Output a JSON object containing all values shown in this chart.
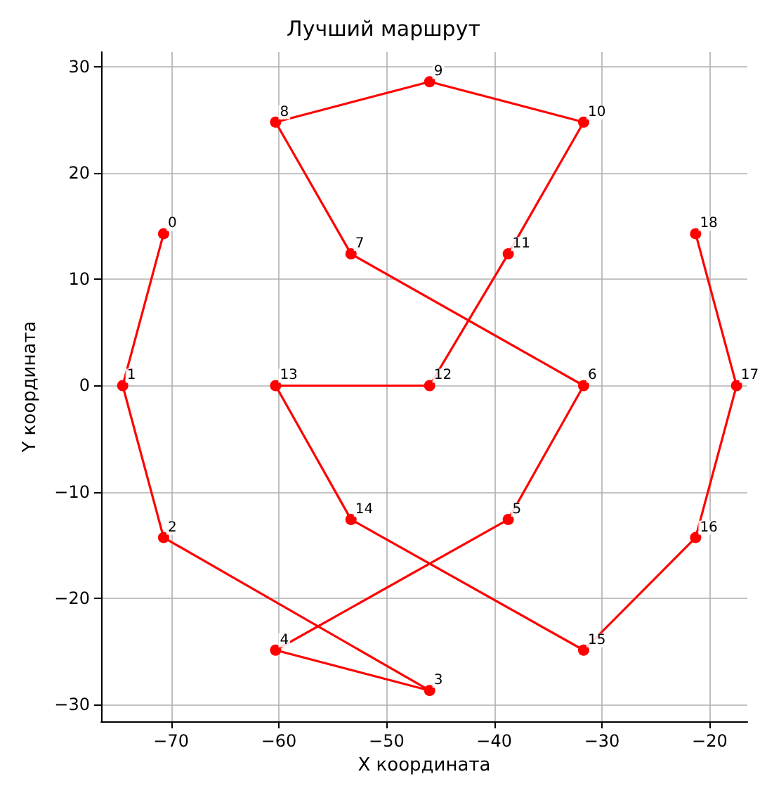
{
  "chart_data": {
    "type": "line",
    "title": "Лучший маршрут",
    "xlabel": "X координата",
    "ylabel": "Y координата",
    "x": [
      -70.7,
      -74.5,
      -70.7,
      -46,
      -60.3,
      -38.7,
      -31.7,
      -53.3,
      -60.3,
      -46,
      -31.7,
      -38.7,
      -46,
      -60.3,
      -53.3,
      -31.7,
      -21.3,
      -17.5,
      -21.3
    ],
    "series": [
      {
        "color": "#ff0000",
        "values": [
          14.3,
          0,
          -14.3,
          -28.7,
          -24.9,
          -12.6,
          0,
          12.4,
          24.8,
          28.6,
          24.8,
          12.4,
          0,
          0,
          -12.6,
          -24.9,
          -14.3,
          0,
          14.3
        ]
      }
    ],
    "xlim": [
      -76.5,
      -16.5
    ],
    "xticks": [
      -70,
      -60,
      -50,
      -40,
      -30,
      -20
    ],
    "ylim": [
      -31.6,
      31.4
    ],
    "yticks": [
      -30,
      -20,
      -10,
      0,
      10,
      20,
      30
    ],
    "grid": true,
    "marker": "circle",
    "line_style": "solid",
    "annotations": [
      {
        "text": "0",
        "x": -70.7,
        "y": 14.3
      },
      {
        "text": "1",
        "x": -74.5,
        "y": 0
      },
      {
        "text": "2",
        "x": -70.7,
        "y": -14.3
      },
      {
        "text": "3",
        "x": -46,
        "y": -28.7
      },
      {
        "text": "4",
        "x": -60.3,
        "y": -24.9
      },
      {
        "text": "5",
        "x": -38.7,
        "y": -12.6
      },
      {
        "text": "6",
        "x": -31.7,
        "y": 0
      },
      {
        "text": "7",
        "x": -53.3,
        "y": 12.4
      },
      {
        "text": "8",
        "x": -60.3,
        "y": 24.8
      },
      {
        "text": "9",
        "x": -46,
        "y": 28.6
      },
      {
        "text": "10",
        "x": -31.7,
        "y": 24.8
      },
      {
        "text": "11",
        "x": -38.7,
        "y": 12.4
      },
      {
        "text": "12",
        "x": -46,
        "y": 0
      },
      {
        "text": "13",
        "x": -60.3,
        "y": 0
      },
      {
        "text": "14",
        "x": -53.3,
        "y": -12.6
      },
      {
        "text": "15",
        "x": -31.7,
        "y": -24.9
      },
      {
        "text": "16",
        "x": -21.3,
        "y": -14.3
      },
      {
        "text": "17",
        "x": -17.5,
        "y": 0
      },
      {
        "text": "18",
        "x": -21.3,
        "y": 14.3
      }
    ]
  }
}
